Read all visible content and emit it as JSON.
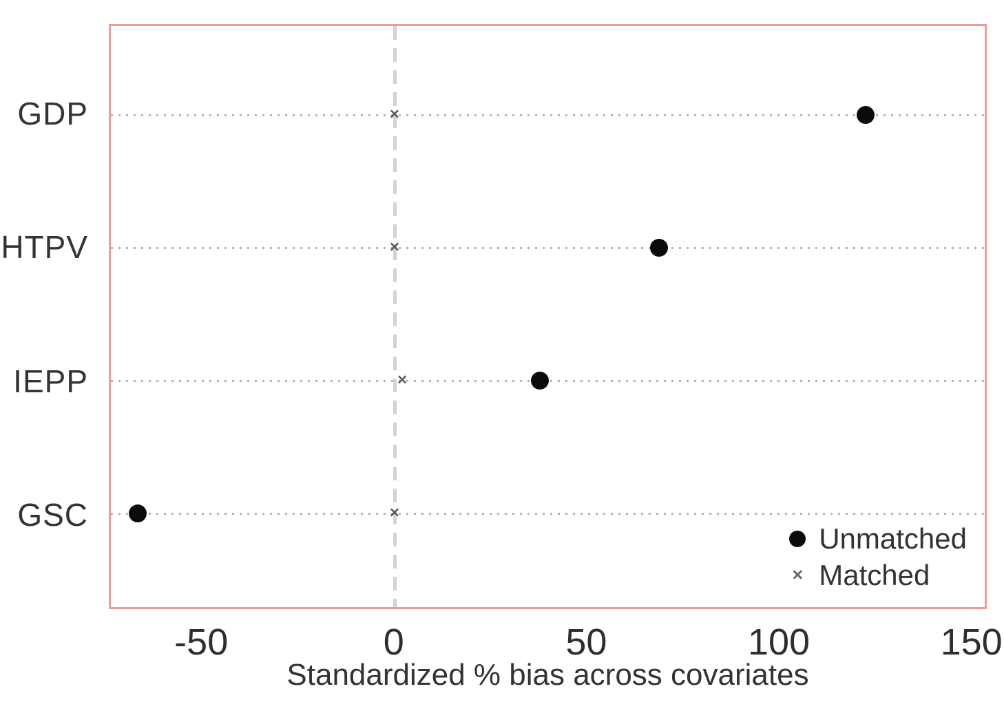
{
  "chart_data": {
    "type": "scatter",
    "variant": "horizontal-dot-plot",
    "title": "",
    "xlabel": "Standardized % bias across covariates",
    "ylabel": "",
    "categories": [
      "GDP",
      "HTPV",
      "IEPP",
      "GSC"
    ],
    "series": [
      {
        "name": "Unmatched",
        "marker": "filled-circle",
        "color": "#0b0b0b",
        "values": [
          123,
          69,
          38,
          -67
        ]
      },
      {
        "name": "Matched",
        "marker": "x-cross",
        "color": "#5a5a5a",
        "values": [
          0,
          0,
          2,
          0
        ]
      }
    ],
    "x_ticks": [
      -50,
      0,
      50,
      100,
      150
    ],
    "x_domain": [
      -74,
      154
    ],
    "reference_line_x": 0,
    "grid": "dotted horizontal line per category",
    "legend_position": "inside bottom-right",
    "legend_entries": [
      "Unmatched",
      "Matched"
    ]
  },
  "styles": {
    "frame_color": "#f09b9b",
    "reference_line_color": "#d3d3d3",
    "grid_color": "#b3b3b3",
    "text_color": "#303030",
    "background": "#ffffff"
  }
}
